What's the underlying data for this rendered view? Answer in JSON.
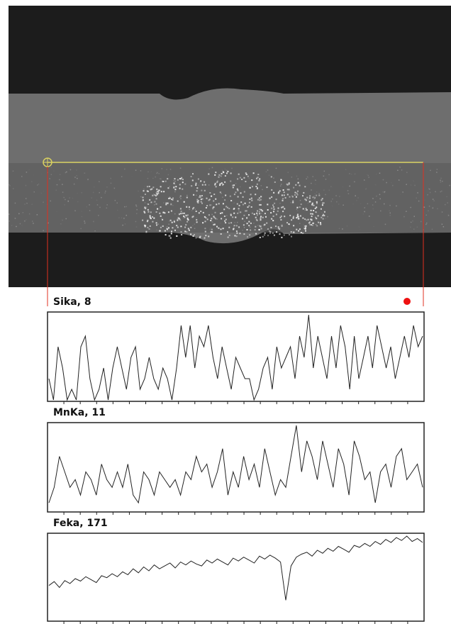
{
  "chart_data": [
    {
      "type": "line",
      "title": "Sika, 8",
      "color": "#222",
      "ylim": [
        0,
        8
      ],
      "values": [
        2,
        0,
        5,
        3,
        0,
        1,
        0,
        5,
        6,
        2,
        0,
        1,
        3,
        0,
        3,
        5,
        3,
        1,
        4,
        5,
        1,
        2,
        4,
        2,
        1,
        3,
        2,
        0,
        3,
        7,
        4,
        7,
        3,
        6,
        5,
        7,
        4,
        2,
        5,
        3,
        1,
        4,
        3,
        2,
        2,
        0,
        1,
        3,
        4,
        1,
        5,
        3,
        4,
        5,
        2,
        6,
        4,
        8,
        3,
        6,
        4,
        2,
        6,
        3,
        7,
        5,
        1,
        6,
        2,
        4,
        6,
        3,
        7,
        5,
        3,
        5,
        2,
        4,
        6,
        4,
        7,
        5,
        6
      ]
    },
    {
      "type": "line",
      "title": "MnKa, 11",
      "color": "#222",
      "ylim": [
        0,
        11
      ],
      "values": [
        1,
        3,
        7,
        5,
        3,
        4,
        2,
        5,
        4,
        2,
        6,
        4,
        3,
        5,
        3,
        6,
        2,
        1,
        5,
        4,
        2,
        5,
        4,
        3,
        4,
        2,
        5,
        4,
        7,
        5,
        6,
        3,
        5,
        8,
        2,
        5,
        3,
        7,
        4,
        6,
        3,
        8,
        5,
        2,
        4,
        3,
        7,
        11,
        5,
        9,
        7,
        4,
        9,
        6,
        3,
        8,
        6,
        2,
        9,
        7,
        4,
        5,
        1,
        5,
        6,
        3,
        7,
        8,
        4,
        5,
        6,
        3
      ]
    },
    {
      "type": "line",
      "title": "Feka, 171",
      "color": "#222",
      "ylim": [
        0,
        171
      ],
      "values": [
        70,
        78,
        66,
        80,
        74,
        84,
        79,
        88,
        82,
        76,
        90,
        86,
        94,
        88,
        98,
        92,
        104,
        96,
        108,
        100,
        112,
        104,
        110,
        116,
        106,
        118,
        112,
        120,
        114,
        110,
        122,
        116,
        124,
        118,
        112,
        126,
        120,
        128,
        122,
        116,
        130,
        124,
        132,
        126,
        118,
        40,
        110,
        128,
        134,
        138,
        130,
        142,
        136,
        146,
        140,
        150,
        144,
        138,
        152,
        148,
        156,
        150,
        160,
        154,
        164,
        158,
        168,
        162,
        171,
        160,
        166,
        158
      ]
    }
  ]
}
